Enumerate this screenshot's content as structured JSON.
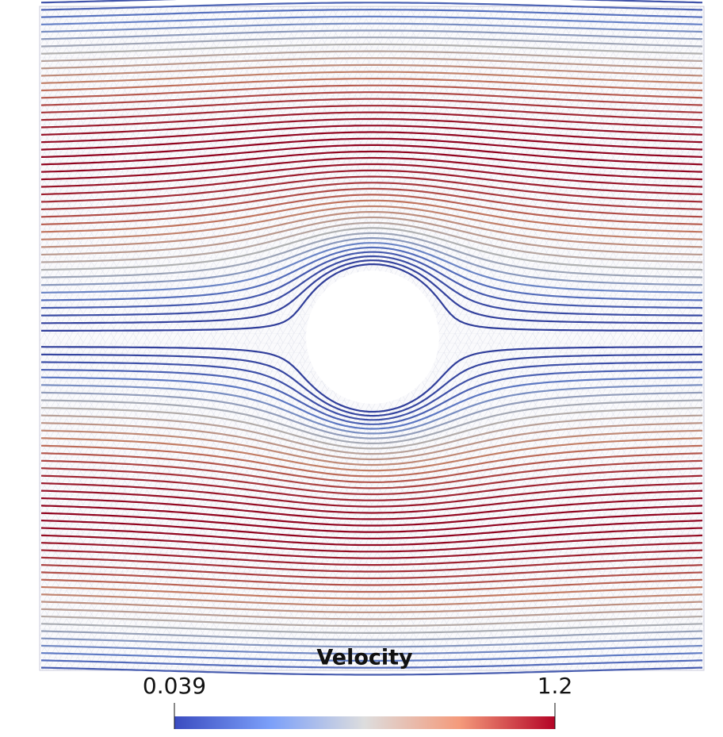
{
  "colorbar": {
    "title": "Velocity",
    "min": 0.039,
    "max": 1.2
  }
}
